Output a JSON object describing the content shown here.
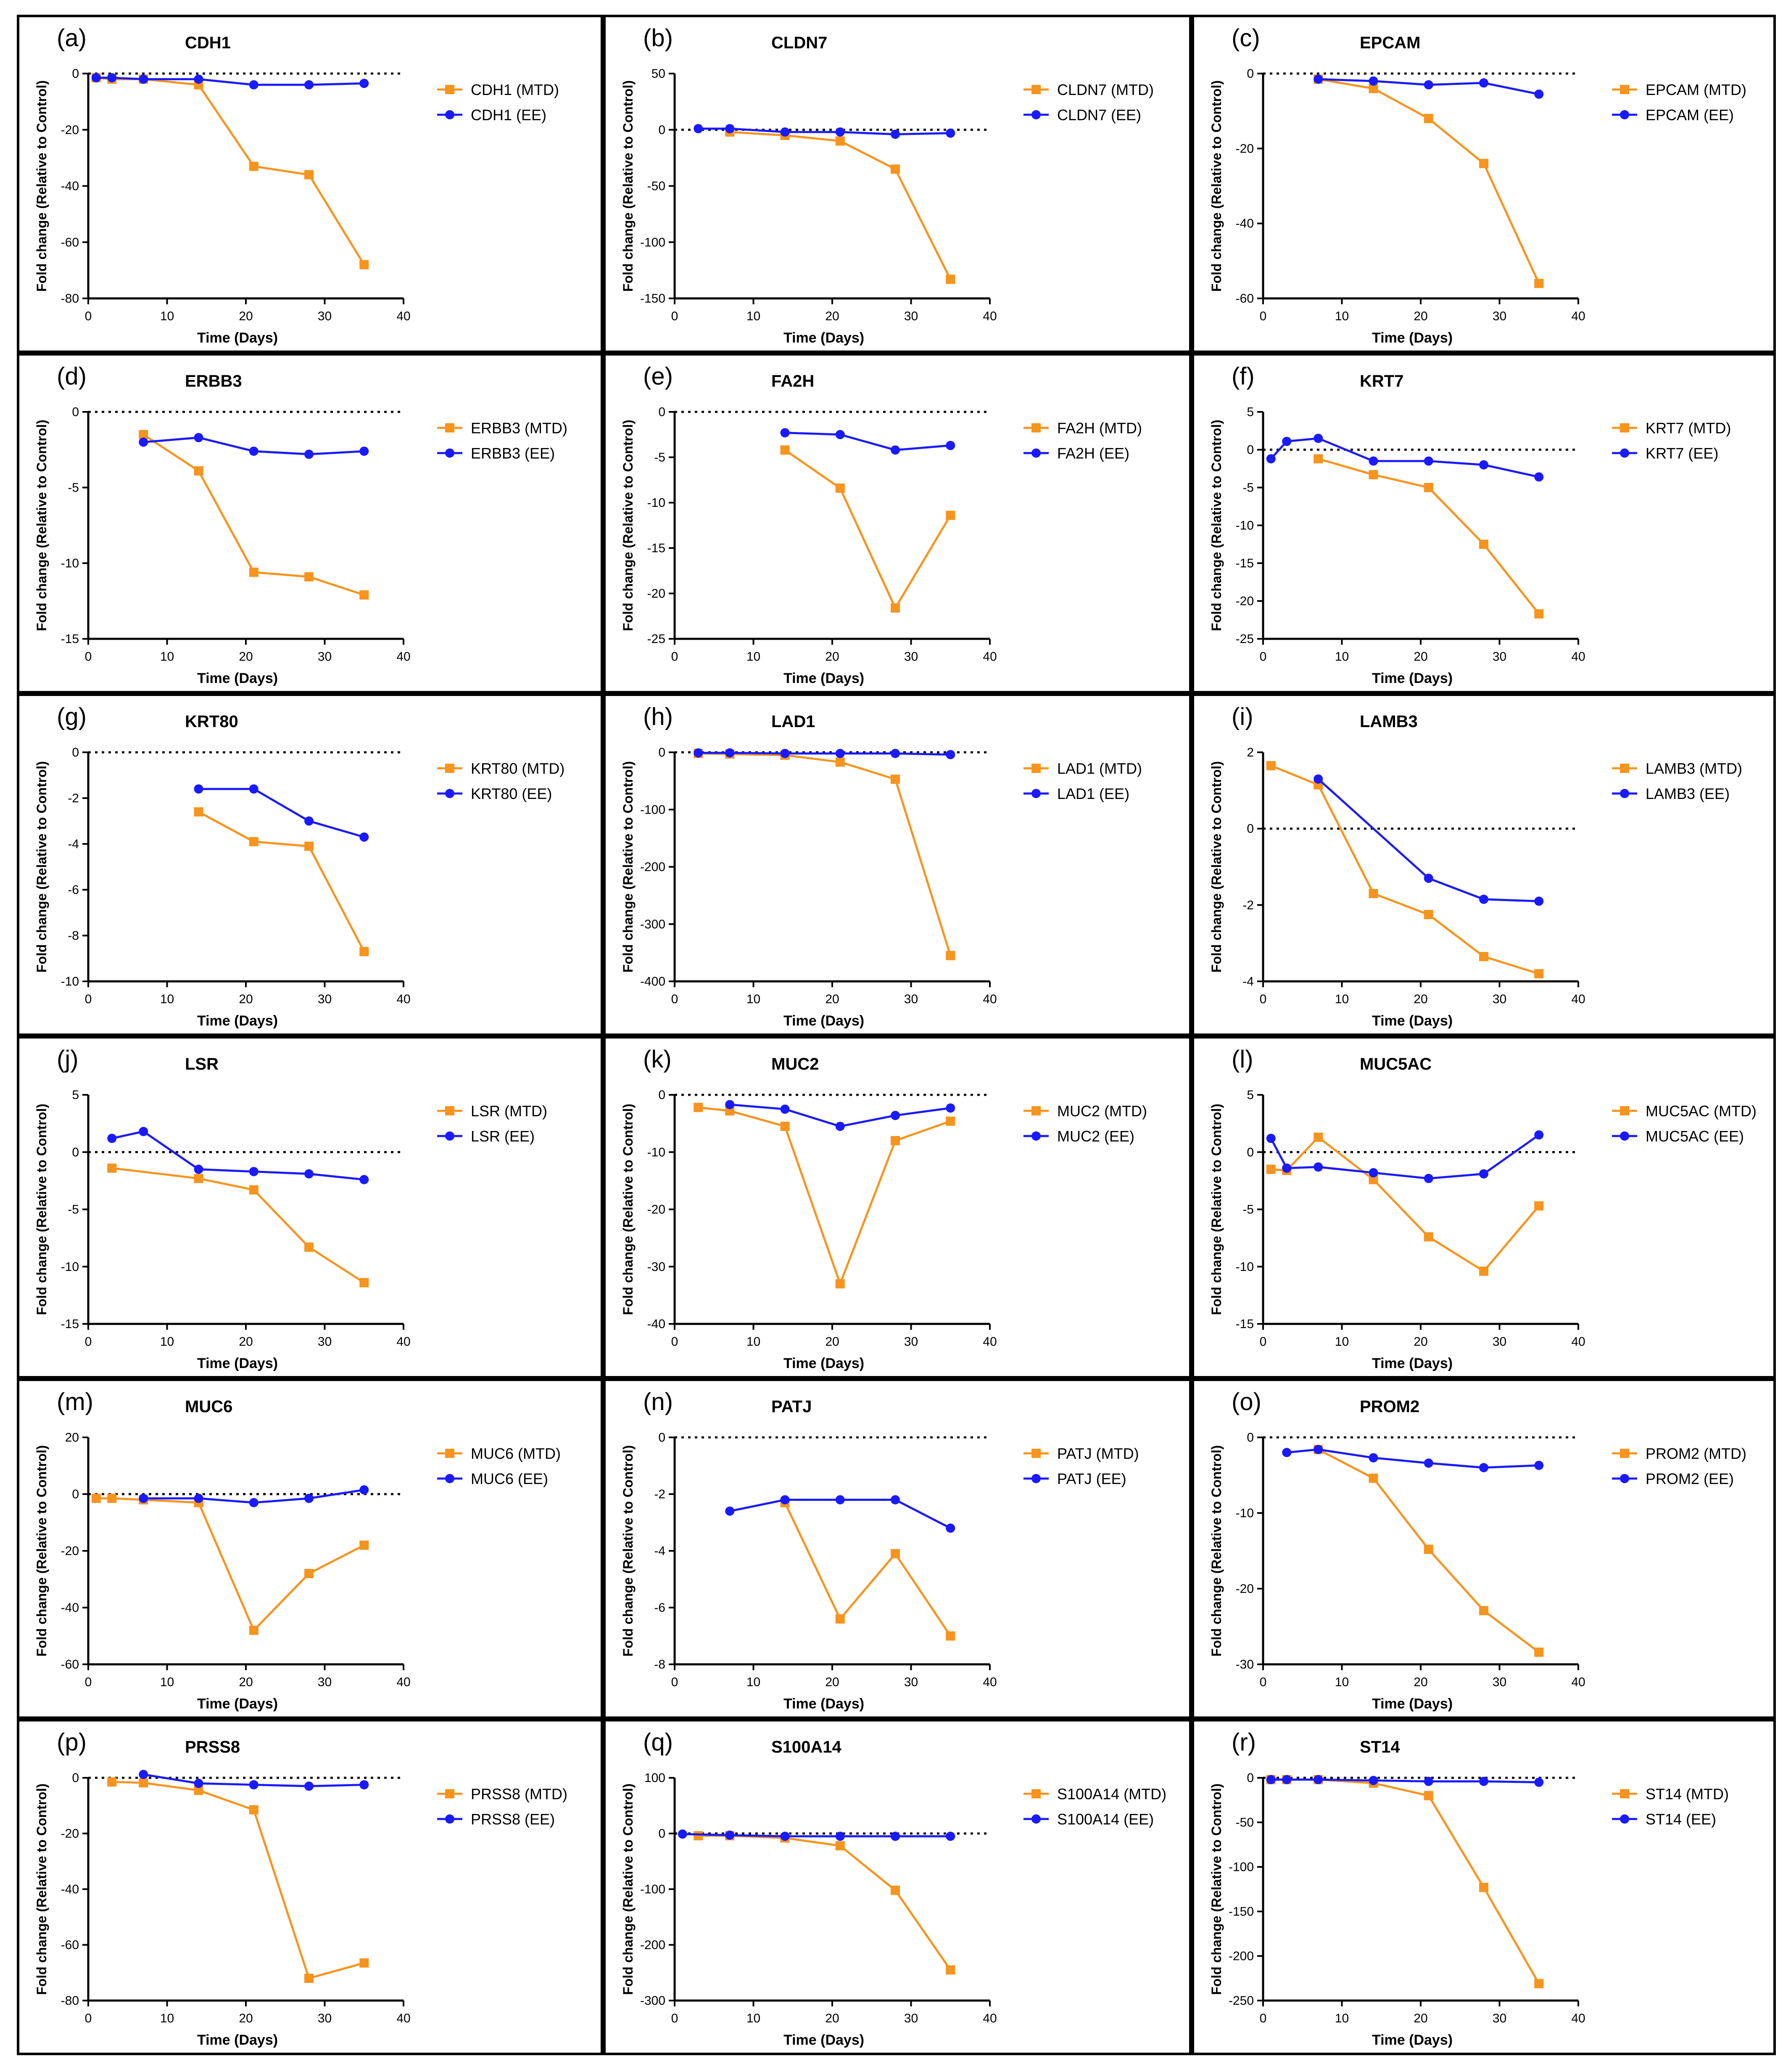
{
  "figure": {
    "x_label": "Time (Days)",
    "y_label": "Fold change (Relative to Control)",
    "colors": {
      "MTD": "#f7941d",
      "EE": "#1a1aff"
    }
  },
  "chart_data": [
    {
      "letter": "(a)",
      "title": "CDH1",
      "type": "line",
      "xlim": [
        0,
        40
      ],
      "xticks": [
        0,
        10,
        20,
        30,
        40
      ],
      "ylim": [
        -80,
        0
      ],
      "yticks": [
        0,
        -20,
        -40,
        -60,
        -80
      ],
      "series": [
        {
          "name": "CDH1 (MTD)",
          "marker": "square",
          "x": [
            1,
            3,
            7,
            14,
            21,
            28,
            35
          ],
          "y": [
            -1.5,
            -2,
            -2,
            -4,
            -33,
            -36,
            -68
          ]
        },
        {
          "name": "CDH1 (EE)",
          "marker": "circle",
          "x": [
            1,
            3,
            7,
            14,
            21,
            28,
            35
          ],
          "y": [
            -1.5,
            -1.5,
            -2,
            -2,
            -4,
            -4,
            -3.5
          ]
        }
      ]
    },
    {
      "letter": "(b)",
      "title": "CLDN7",
      "type": "line",
      "xlim": [
        0,
        40
      ],
      "xticks": [
        0,
        10,
        20,
        30,
        40
      ],
      "ylim": [
        -150,
        50
      ],
      "yticks": [
        50,
        0,
        -50,
        -100,
        -150
      ],
      "series": [
        {
          "name": "CLDN7 (MTD)",
          "marker": "square",
          "x": [
            7,
            14,
            21,
            28,
            35
          ],
          "y": [
            -2,
            -5,
            -10,
            -35,
            -133
          ]
        },
        {
          "name": "CLDN7 (EE)",
          "marker": "circle",
          "x": [
            3,
            7,
            14,
            21,
            28,
            35
          ],
          "y": [
            1,
            1,
            -2,
            -2,
            -4,
            -3
          ]
        }
      ]
    },
    {
      "letter": "(c)",
      "title": "EPCAM",
      "type": "line",
      "xlim": [
        0,
        40
      ],
      "xticks": [
        0,
        10,
        20,
        30,
        40
      ],
      "ylim": [
        -60,
        0
      ],
      "yticks": [
        0,
        -20,
        -40,
        -60
      ],
      "series": [
        {
          "name": "EPCAM (MTD)",
          "marker": "square",
          "x": [
            7,
            14,
            21,
            28,
            35
          ],
          "y": [
            -1.5,
            -4,
            -12,
            -24,
            -56
          ]
        },
        {
          "name": "EPCAM (EE)",
          "marker": "circle",
          "x": [
            7,
            14,
            21,
            28,
            35
          ],
          "y": [
            -1.5,
            -2,
            -3,
            -2.5,
            -5.5
          ]
        }
      ]
    },
    {
      "letter": "(d)",
      "title": "ERBB3",
      "type": "line",
      "xlim": [
        0,
        40
      ],
      "xticks": [
        0,
        10,
        20,
        30,
        40
      ],
      "ylim": [
        -15,
        0
      ],
      "yticks": [
        0,
        -5,
        -10,
        -15
      ],
      "series": [
        {
          "name": "ERBB3 (MTD)",
          "marker": "square",
          "x": [
            7,
            14,
            21,
            28,
            35
          ],
          "y": [
            -1.5,
            -3.9,
            -10.6,
            -10.9,
            -12.1
          ]
        },
        {
          "name": "ERBB3 (EE)",
          "marker": "circle",
          "x": [
            7,
            14,
            21,
            28,
            35
          ],
          "y": [
            -2,
            -1.7,
            -2.6,
            -2.8,
            -2.6
          ]
        }
      ]
    },
    {
      "letter": "(e)",
      "title": "FA2H",
      "type": "line",
      "xlim": [
        0,
        40
      ],
      "xticks": [
        0,
        10,
        20,
        30,
        40
      ],
      "ylim": [
        -25,
        0
      ],
      "yticks": [
        0,
        -5,
        -10,
        -15,
        -20,
        -25
      ],
      "series": [
        {
          "name": "FA2H (MTD)",
          "marker": "square",
          "x": [
            14,
            21,
            28,
            35
          ],
          "y": [
            -4.2,
            -8.4,
            -21.6,
            -11.4
          ]
        },
        {
          "name": "FA2H (EE)",
          "marker": "circle",
          "x": [
            14,
            21,
            28,
            35
          ],
          "y": [
            -2.3,
            -2.5,
            -4.2,
            -3.7
          ]
        }
      ]
    },
    {
      "letter": "(f)",
      "title": "KRT7",
      "type": "line",
      "xlim": [
        0,
        40
      ],
      "xticks": [
        0,
        10,
        20,
        30,
        40
      ],
      "ylim": [
        -25,
        5
      ],
      "yticks": [
        5,
        0,
        -5,
        -10,
        -15,
        -20,
        -25
      ],
      "series": [
        {
          "name": "KRT7 (MTD)",
          "marker": "square",
          "x": [
            7,
            14,
            21,
            28,
            35
          ],
          "y": [
            -1.2,
            -3.3,
            -5,
            -12.5,
            -21.7
          ]
        },
        {
          "name": "KRT7 (EE)",
          "marker": "circle",
          "x": [
            1,
            3,
            7,
            14,
            21,
            28,
            35
          ],
          "y": [
            -1.2,
            1.1,
            1.5,
            -1.5,
            -1.5,
            -2,
            -3.6
          ]
        }
      ]
    },
    {
      "letter": "(g)",
      "title": "KRT80",
      "type": "line",
      "xlim": [
        0,
        40
      ],
      "xticks": [
        0,
        10,
        20,
        30,
        40
      ],
      "ylim": [
        -10,
        0
      ],
      "yticks": [
        0,
        -2,
        -4,
        -6,
        -8,
        -10
      ],
      "series": [
        {
          "name": "KRT80 (MTD)",
          "marker": "square",
          "x": [
            14,
            21,
            28,
            35
          ],
          "y": [
            -2.6,
            -3.9,
            -4.1,
            -8.7
          ]
        },
        {
          "name": "KRT80 (EE)",
          "marker": "circle",
          "x": [
            14,
            21,
            28,
            35
          ],
          "y": [
            -1.6,
            -1.6,
            -3,
            -3.7
          ]
        }
      ]
    },
    {
      "letter": "(h)",
      "title": "LAD1",
      "type": "line",
      "xlim": [
        0,
        40
      ],
      "xticks": [
        0,
        10,
        20,
        30,
        40
      ],
      "ylim": [
        -400,
        0
      ],
      "yticks": [
        0,
        -100,
        -200,
        -300,
        -400
      ],
      "series": [
        {
          "name": "LAD1 (MTD)",
          "marker": "square",
          "x": [
            3,
            7,
            14,
            21,
            28,
            35
          ],
          "y": [
            -2,
            -3,
            -5,
            -17,
            -47,
            -355
          ]
        },
        {
          "name": "LAD1 (EE)",
          "marker": "circle",
          "x": [
            3,
            7,
            14,
            21,
            28,
            35
          ],
          "y": [
            -1,
            -1,
            -2,
            -2,
            -2,
            -4
          ]
        }
      ]
    },
    {
      "letter": "(i)",
      "title": "LAMB3",
      "type": "line",
      "xlim": [
        0,
        40
      ],
      "xticks": [
        0,
        10,
        20,
        30,
        40
      ],
      "ylim": [
        -4,
        2
      ],
      "yticks": [
        2,
        0,
        -2,
        -4
      ],
      "series": [
        {
          "name": "LAMB3 (MTD)",
          "marker": "square",
          "x": [
            1,
            7,
            14,
            21,
            28,
            35
          ],
          "y": [
            1.65,
            1.15,
            -1.7,
            -2.25,
            -3.35,
            -3.8
          ]
        },
        {
          "name": "LAMB3 (EE)",
          "marker": "circle",
          "x": [
            7,
            21,
            28,
            35
          ],
          "y": [
            1.3,
            -1.3,
            -1.85,
            -1.9
          ]
        }
      ]
    },
    {
      "letter": "(j)",
      "title": "LSR",
      "type": "line",
      "xlim": [
        0,
        40
      ],
      "xticks": [
        0,
        10,
        20,
        30,
        40
      ],
      "ylim": [
        -15,
        5
      ],
      "yticks": [
        5,
        0,
        -5,
        -10,
        -15
      ],
      "series": [
        {
          "name": "LSR (MTD)",
          "marker": "square",
          "x": [
            3,
            14,
            21,
            28,
            35
          ],
          "y": [
            -1.4,
            -2.3,
            -3.3,
            -8.3,
            -11.4
          ]
        },
        {
          "name": "LSR (EE)",
          "marker": "circle",
          "x": [
            3,
            7,
            14,
            21,
            28,
            35
          ],
          "y": [
            1.2,
            1.8,
            -1.5,
            -1.7,
            -1.9,
            -2.4
          ]
        }
      ]
    },
    {
      "letter": "(k)",
      "title": "MUC2",
      "type": "line",
      "xlim": [
        0,
        40
      ],
      "xticks": [
        0,
        10,
        20,
        30,
        40
      ],
      "ylim": [
        -40,
        0
      ],
      "yticks": [
        0,
        -10,
        -20,
        -30,
        -40
      ],
      "series": [
        {
          "name": "MUC2 (MTD)",
          "marker": "square",
          "x": [
            3,
            7,
            14,
            21,
            28,
            35
          ],
          "y": [
            -2.2,
            -2.8,
            -5.5,
            -33,
            -8,
            -4.6
          ]
        },
        {
          "name": "MUC2 (EE)",
          "marker": "circle",
          "x": [
            7,
            14,
            21,
            28,
            35
          ],
          "y": [
            -1.7,
            -2.5,
            -5.5,
            -3.6,
            -2.3
          ]
        }
      ]
    },
    {
      "letter": "(l)",
      "title": "MUC5AC",
      "type": "line",
      "xlim": [
        0,
        40
      ],
      "xticks": [
        0,
        10,
        20,
        30,
        40
      ],
      "ylim": [
        -15,
        5
      ],
      "yticks": [
        5,
        0,
        -5,
        -10,
        -15
      ],
      "series": [
        {
          "name": "MUC5AC (MTD)",
          "marker": "square",
          "x": [
            1,
            3,
            7,
            14,
            21,
            28,
            35
          ],
          "y": [
            -1.5,
            -1.6,
            1.3,
            -2.4,
            -7.4,
            -10.4,
            -4.7
          ]
        },
        {
          "name": "MUC5AC (EE)",
          "marker": "circle",
          "x": [
            1,
            3,
            7,
            14,
            21,
            28,
            35
          ],
          "y": [
            1.2,
            -1.4,
            -1.3,
            -1.8,
            -2.3,
            -1.9,
            1.5
          ]
        }
      ]
    },
    {
      "letter": "(m)",
      "title": "MUC6",
      "type": "line",
      "xlim": [
        0,
        40
      ],
      "xticks": [
        0,
        10,
        20,
        30,
        40
      ],
      "ylim": [
        -60,
        20
      ],
      "yticks": [
        20,
        0,
        -20,
        -40,
        -60
      ],
      "series": [
        {
          "name": "MUC6 (MTD)",
          "marker": "square",
          "x": [
            1,
            3,
            7,
            14,
            21,
            28,
            35
          ],
          "y": [
            -1.5,
            -1.5,
            -2,
            -3,
            -48,
            -28,
            -18
          ]
        },
        {
          "name": "MUC6 (EE)",
          "marker": "circle",
          "x": [
            7,
            14,
            21,
            28,
            35
          ],
          "y": [
            -1.5,
            -1.5,
            -3,
            -1.5,
            1.5
          ]
        }
      ]
    },
    {
      "letter": "(n)",
      "title": "PATJ",
      "type": "line",
      "xlim": [
        0,
        40
      ],
      "xticks": [
        0,
        10,
        20,
        30,
        40
      ],
      "ylim": [
        -8,
        0
      ],
      "yticks": [
        0,
        -2,
        -4,
        -6,
        -8
      ],
      "series": [
        {
          "name": "PATJ (MTD)",
          "marker": "square",
          "x": [
            14,
            21,
            28,
            35
          ],
          "y": [
            -2.3,
            -6.4,
            -4.1,
            -7
          ]
        },
        {
          "name": "PATJ (EE)",
          "marker": "circle",
          "x": [
            7,
            14,
            21,
            28,
            35
          ],
          "y": [
            -2.6,
            -2.2,
            -2.2,
            -2.2,
            -3.2
          ]
        }
      ]
    },
    {
      "letter": "(o)",
      "title": "PROM2",
      "type": "line",
      "xlim": [
        0,
        40
      ],
      "xticks": [
        0,
        10,
        20,
        30,
        40
      ],
      "ylim": [
        -30,
        0
      ],
      "yticks": [
        0,
        -10,
        -20,
        -30
      ],
      "series": [
        {
          "name": "PROM2 (MTD)",
          "marker": "square",
          "x": [
            7,
            14,
            21,
            28,
            35
          ],
          "y": [
            -1.6,
            -5.4,
            -14.8,
            -22.9,
            -28.4
          ]
        },
        {
          "name": "PROM2 (EE)",
          "marker": "circle",
          "x": [
            3,
            7,
            14,
            21,
            28,
            35
          ],
          "y": [
            -2,
            -1.6,
            -2.7,
            -3.4,
            -4,
            -3.7
          ]
        }
      ]
    },
    {
      "letter": "(p)",
      "title": "PRSS8",
      "type": "line",
      "xlim": [
        0,
        40
      ],
      "xticks": [
        0,
        10,
        20,
        30,
        40
      ],
      "ylim": [
        -80,
        0
      ],
      "yticks": [
        0,
        -20,
        -40,
        -60,
        -80
      ],
      "series": [
        {
          "name": "PRSS8 (MTD)",
          "marker": "square",
          "x": [
            3,
            7,
            14,
            21,
            28,
            35
          ],
          "y": [
            -1.5,
            -1.8,
            -4.5,
            -11.5,
            -72,
            -66.5
          ]
        },
        {
          "name": "PRSS8 (EE)",
          "marker": "circle",
          "x": [
            7,
            14,
            21,
            28,
            35
          ],
          "y": [
            1.2,
            -2,
            -2.5,
            -3,
            -2.5
          ]
        }
      ]
    },
    {
      "letter": "(q)",
      "title": "S100A14",
      "type": "line",
      "xlim": [
        0,
        40
      ],
      "xticks": [
        0,
        10,
        20,
        30,
        40
      ],
      "ylim": [
        -300,
        100
      ],
      "yticks": [
        100,
        0,
        -100,
        -200,
        -300
      ],
      "series": [
        {
          "name": "S100A14 (MTD)",
          "marker": "square",
          "x": [
            3,
            7,
            14,
            21,
            28,
            35
          ],
          "y": [
            -4,
            -4,
            -8,
            -22,
            -102,
            -245
          ]
        },
        {
          "name": "S100A14 (EE)",
          "marker": "circle",
          "x": [
            1,
            7,
            14,
            21,
            28,
            35
          ],
          "y": [
            -1,
            -3,
            -5,
            -5,
            -5,
            -5
          ]
        }
      ]
    },
    {
      "letter": "(r)",
      "title": "ST14",
      "type": "line",
      "xlim": [
        0,
        40
      ],
      "xticks": [
        0,
        10,
        20,
        30,
        40
      ],
      "ylim": [
        -250,
        0
      ],
      "yticks": [
        0,
        -50,
        -100,
        -150,
        -200,
        -250
      ],
      "series": [
        {
          "name": "ST14 (MTD)",
          "marker": "square",
          "x": [
            1,
            3,
            7,
            14,
            21,
            28,
            35
          ],
          "y": [
            -2,
            -2,
            -2,
            -6,
            -20,
            -123,
            -231
          ]
        },
        {
          "name": "ST14 (EE)",
          "marker": "circle",
          "x": [
            1,
            3,
            7,
            14,
            21,
            28,
            35
          ],
          "y": [
            -2,
            -2,
            -2,
            -3,
            -4,
            -4,
            -5
          ]
        }
      ]
    }
  ]
}
